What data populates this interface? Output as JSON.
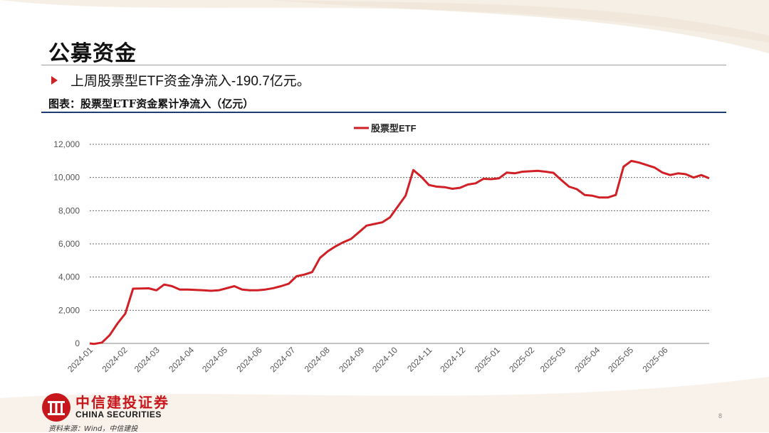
{
  "slide": {
    "title": "公募资金",
    "bullet": "上周股票型ETF资金净流入-190.7亿元。",
    "caption": "图表：股票型ETF资金累计净流入（亿元）",
    "source": "资料来源：Wind，中信建投",
    "page_number": "8",
    "logo": {
      "cn": "中信建投证券",
      "en": "CHINA SECURITIES"
    }
  },
  "colors": {
    "accent": "#d11f26",
    "navy": "#1f3c73"
  },
  "chart_data": {
    "type": "line",
    "title": "",
    "xlabel": "",
    "ylabel": "",
    "legend": "top-center",
    "grid": "dashed-horizontal",
    "ylim": [
      0,
      12000
    ],
    "yticks": [
      "0",
      "2,000",
      "4,000",
      "6,000",
      "8,000",
      "10,000",
      "12,000"
    ],
    "xticks": [
      "2024-01",
      "2024-02",
      "2024-03",
      "2024-04",
      "2024-05",
      "2024-06",
      "2024-07",
      "2024-08",
      "2024-09",
      "2024-10",
      "2024-11",
      "2024-12",
      "2025-01",
      "2025-02",
      "2025-03",
      "2025-04",
      "2025-05",
      "2025-06"
    ],
    "series": [
      {
        "name": "股票型ETF",
        "color": "#d11f26",
        "points": [
          [
            "2024-01-01",
            0
          ],
          [
            "2024-01-05",
            -30
          ],
          [
            "2024-01-12",
            50
          ],
          [
            "2024-01-19",
            500
          ],
          [
            "2024-01-26",
            1200
          ],
          [
            "2024-02-02",
            1800
          ],
          [
            "2024-02-09",
            3300
          ],
          [
            "2024-02-23",
            3320
          ],
          [
            "2024-03-01",
            3200
          ],
          [
            "2024-03-08",
            3550
          ],
          [
            "2024-03-15",
            3450
          ],
          [
            "2024-03-22",
            3250
          ],
          [
            "2024-03-29",
            3250
          ],
          [
            "2024-04-12",
            3200
          ],
          [
            "2024-04-19",
            3170
          ],
          [
            "2024-04-26",
            3200
          ],
          [
            "2024-05-10",
            3450
          ],
          [
            "2024-05-17",
            3250
          ],
          [
            "2024-05-24",
            3200
          ],
          [
            "2024-05-31",
            3200
          ],
          [
            "2024-06-07",
            3250
          ],
          [
            "2024-06-14",
            3330
          ],
          [
            "2024-06-21",
            3450
          ],
          [
            "2024-06-28",
            3600
          ],
          [
            "2024-07-05",
            4050
          ],
          [
            "2024-07-12",
            4150
          ],
          [
            "2024-07-19",
            4300
          ],
          [
            "2024-07-26",
            5150
          ],
          [
            "2024-08-02",
            5550
          ],
          [
            "2024-08-09",
            5850
          ],
          [
            "2024-08-16",
            6100
          ],
          [
            "2024-08-23",
            6300
          ],
          [
            "2024-08-30",
            6700
          ],
          [
            "2024-09-06",
            7100
          ],
          [
            "2024-09-13",
            7200
          ],
          [
            "2024-09-20",
            7300
          ],
          [
            "2024-09-27",
            7600
          ],
          [
            "2024-10-11",
            8900
          ],
          [
            "2024-10-18",
            10450
          ],
          [
            "2024-10-25",
            10050
          ],
          [
            "2024-11-01",
            9550
          ],
          [
            "2024-11-08",
            9450
          ],
          [
            "2024-11-15",
            9420
          ],
          [
            "2024-11-22",
            9320
          ],
          [
            "2024-11-29",
            9380
          ],
          [
            "2024-12-06",
            9580
          ],
          [
            "2024-12-13",
            9650
          ],
          [
            "2024-12-20",
            9920
          ],
          [
            "2024-12-27",
            9900
          ],
          [
            "2025-01-03",
            9950
          ],
          [
            "2025-01-10",
            10300
          ],
          [
            "2025-01-17",
            10250
          ],
          [
            "2025-01-24",
            10350
          ],
          [
            "2025-02-07",
            10400
          ],
          [
            "2025-02-14",
            10350
          ],
          [
            "2025-02-21",
            10280
          ],
          [
            "2025-02-28",
            9850
          ],
          [
            "2025-03-07",
            9450
          ],
          [
            "2025-03-14",
            9300
          ],
          [
            "2025-03-21",
            8950
          ],
          [
            "2025-03-28",
            8900
          ],
          [
            "2025-04-03",
            8800
          ],
          [
            "2025-04-11",
            8800
          ],
          [
            "2025-04-18",
            8950
          ],
          [
            "2025-04-25",
            10650
          ],
          [
            "2025-05-02",
            11000
          ],
          [
            "2025-05-09",
            10900
          ],
          [
            "2025-05-16",
            10750
          ],
          [
            "2025-05-23",
            10600
          ],
          [
            "2025-05-30",
            10300
          ],
          [
            "2025-06-06",
            10150
          ],
          [
            "2025-06-13",
            10250
          ],
          [
            "2025-06-20",
            10200
          ],
          [
            "2025-06-27",
            10000
          ],
          [
            "2025-07-04",
            10150
          ],
          [
            "2025-07-11",
            9950
          ]
        ]
      }
    ]
  }
}
